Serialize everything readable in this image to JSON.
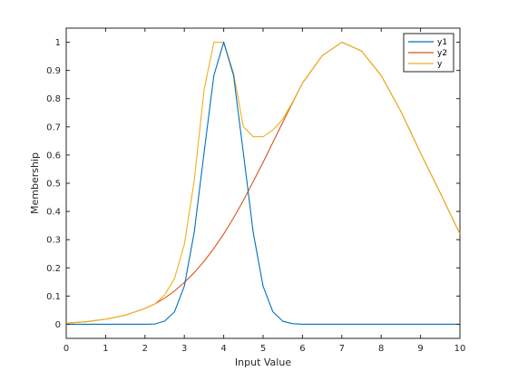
{
  "chart_data": {
    "type": "line",
    "xlabel": "Input Value",
    "ylabel": "Membership",
    "xlim": [
      0,
      10
    ],
    "ylim": [
      -0.05,
      1.05
    ],
    "xticks": [
      "0",
      "1",
      "2",
      "3",
      "4",
      "5",
      "6",
      "7",
      "8",
      "9",
      "10"
    ],
    "yticks": [
      "0",
      "0.1",
      "0.2",
      "0.3",
      "0.4",
      "0.5",
      "0.6",
      "0.7",
      "0.8",
      "0.9",
      "1"
    ],
    "grid": false,
    "legend_position": "top-right",
    "x": [
      0,
      0.5,
      1,
      1.5,
      2,
      2.25,
      2.5,
      2.75,
      3,
      3.25,
      3.5,
      3.75,
      4,
      4.25,
      4.5,
      4.75,
      5,
      5.25,
      5.5,
      5.75,
      6,
      6.5,
      7,
      7.5,
      8,
      8.5,
      9,
      9.5,
      10
    ],
    "series": [
      {
        "name": "y1",
        "color": "#0072BD",
        "values": [
          0,
          0,
          0,
          0,
          0,
          0.001,
          0.011,
          0.044,
          0.135,
          0.325,
          0.607,
          0.882,
          1,
          0.882,
          0.607,
          0.325,
          0.135,
          0.044,
          0.011,
          0.002,
          0,
          0,
          0,
          0,
          0,
          0,
          0,
          0,
          0
        ]
      },
      {
        "name": "y2",
        "color": "#D95319",
        "values": [
          0.004,
          0.009,
          0.018,
          0.032,
          0.056,
          0.072,
          0.093,
          0.118,
          0.148,
          0.183,
          0.223,
          0.269,
          0.32,
          0.377,
          0.439,
          0.506,
          0.574,
          0.645,
          0.716,
          0.786,
          0.855,
          0.952,
          1,
          0.969,
          0.882,
          0.755,
          0.607,
          0.466,
          0.32
        ]
      },
      {
        "name": "y",
        "color": "#EDB120",
        "values": [
          0.004,
          0.009,
          0.018,
          0.032,
          0.056,
          0.072,
          0.104,
          0.162,
          0.283,
          0.508,
          0.83,
          1,
          1,
          0.89,
          0.7,
          0.665,
          0.665,
          0.689,
          0.727,
          0.788,
          0.855,
          0.952,
          1,
          0.969,
          0.882,
          0.755,
          0.607,
          0.466,
          0.32
        ]
      }
    ]
  }
}
